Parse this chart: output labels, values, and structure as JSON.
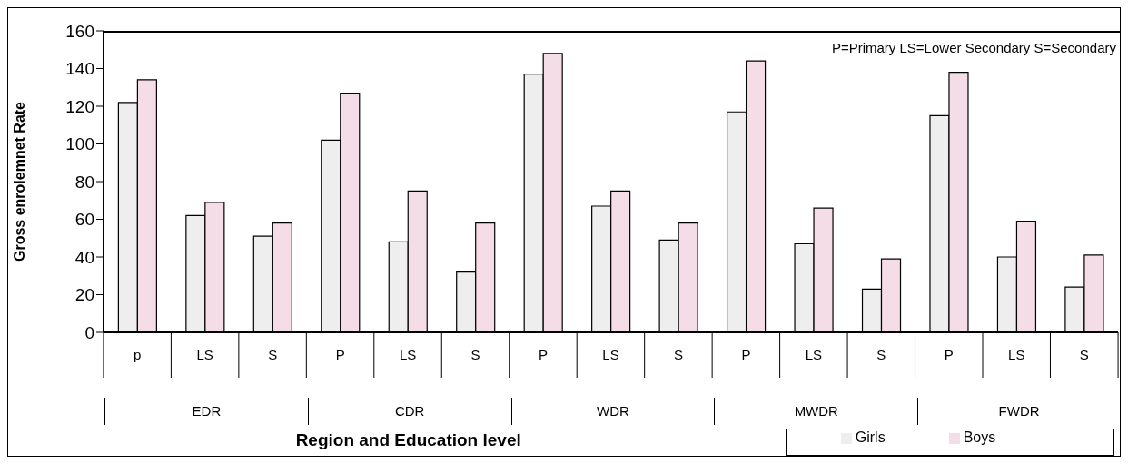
{
  "chart_data": {
    "type": "bar",
    "xlabel": "Region and Education level",
    "ylabel": "Gross enrolemnet Rate",
    "categories": [
      "p",
      "LS",
      "S",
      "P",
      "LS",
      "S",
      "P",
      "LS",
      "S",
      "P",
      "LS",
      "S",
      "P",
      "LS",
      "S"
    ],
    "series": [
      {
        "name": "Girls",
        "color": "#eeeeee",
        "values": [
          122,
          62,
          51,
          102,
          48,
          32,
          137,
          67,
          49,
          117,
          47,
          23,
          115,
          40,
          24
        ]
      },
      {
        "name": "Boys",
        "color": "#f5dde8",
        "values": [
          134,
          69,
          58,
          127,
          75,
          58,
          148,
          75,
          58,
          144,
          66,
          39,
          138,
          59,
          41
        ]
      }
    ],
    "annotations": [
      "P=Primary LS=Lower Secondary S=Secondary",
      "EDR",
      "CDR",
      "WDR",
      "MWDR",
      "FWDR"
    ],
    "ylim": [
      0,
      160
    ],
    "yticks": [
      0,
      20,
      40,
      60,
      80,
      100,
      120,
      140,
      160
    ],
    "grid": false,
    "legend": "bottom right"
  }
}
